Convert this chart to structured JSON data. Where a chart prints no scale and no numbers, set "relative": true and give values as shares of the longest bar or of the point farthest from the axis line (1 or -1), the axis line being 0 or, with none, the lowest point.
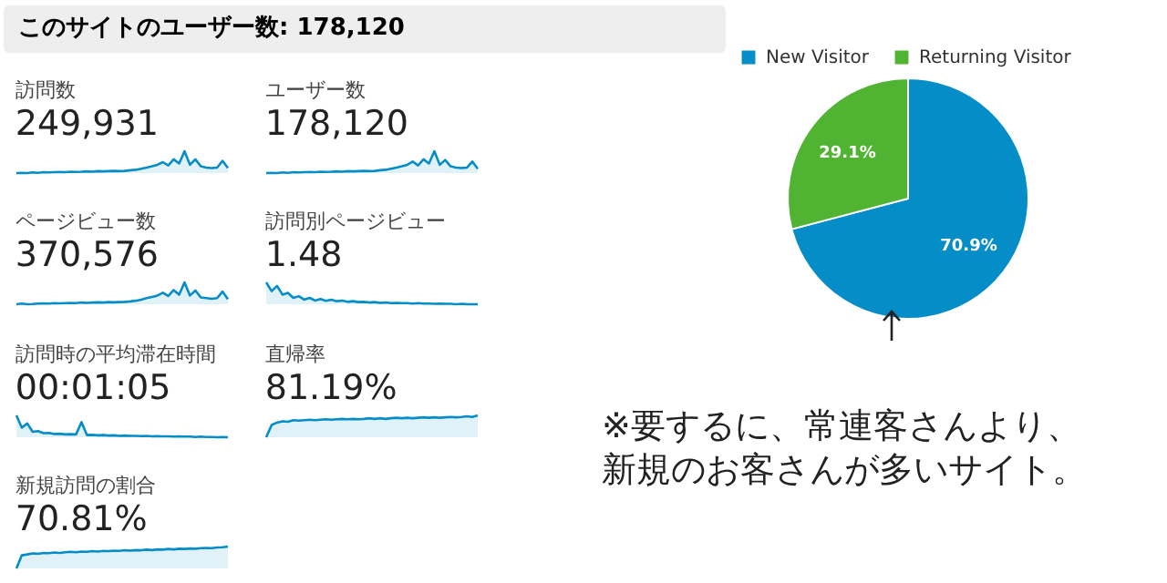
{
  "chart_data": [
    {
      "type": "other",
      "title": "このサイトのユーザー数: 178,120"
    },
    {
      "type": "area",
      "title": "訪問数",
      "subtitle": "249,931",
      "relative": true,
      "categories": [
        null,
        null,
        null,
        null,
        null,
        null,
        null,
        null,
        null,
        null,
        null,
        null,
        null,
        null,
        null,
        null,
        null,
        null,
        null,
        null,
        null,
        null,
        null,
        null,
        null,
        null,
        null,
        null,
        null,
        null,
        null,
        null,
        null,
        null,
        null,
        null,
        null,
        null,
        null,
        null
      ],
      "series": [
        {
          "color": "#058dc7",
          "values": [
            0,
            0.01,
            0,
            0.03,
            0.01,
            0.04,
            0.03,
            0.04,
            0.05,
            0.04,
            0.06,
            0.05,
            0.06,
            0.08,
            0.06,
            0.09,
            0.08,
            0.09,
            0.1,
            0.09,
            0.1,
            0.13,
            0.15,
            0.2,
            0.25,
            0.31,
            0.38,
            0.5,
            0.35,
            0.63,
            0.44,
            1,
            0.38,
            0.63,
            0.31,
            0.25,
            0.23,
            0.25,
            0.56,
            0.23
          ]
        }
      ]
    },
    {
      "type": "area",
      "title": "ユーザー数",
      "subtitle": "178,120",
      "relative": true,
      "categories": [
        null,
        null,
        null,
        null,
        null,
        null,
        null,
        null,
        null,
        null,
        null,
        null,
        null,
        null,
        null,
        null,
        null,
        null,
        null,
        null,
        null,
        null,
        null,
        null,
        null,
        null,
        null,
        null,
        null,
        null,
        null,
        null,
        null,
        null,
        null,
        null,
        null,
        null,
        null,
        null
      ],
      "series": [
        {
          "color": "#058dc7",
          "values": [
            0,
            0.01,
            0,
            0.03,
            0.01,
            0.04,
            0.03,
            0.04,
            0.05,
            0.04,
            0.06,
            0.05,
            0.06,
            0.08,
            0.06,
            0.09,
            0.08,
            0.09,
            0.1,
            0.09,
            0.1,
            0.13,
            0.15,
            0.2,
            0.25,
            0.31,
            0.38,
            0.53,
            0.35,
            0.63,
            0.44,
            1,
            0.38,
            0.6,
            0.31,
            0.25,
            0.23,
            0.25,
            0.53,
            0.2
          ]
        }
      ]
    },
    {
      "type": "area",
      "title": "ページビュー数",
      "subtitle": "370,576",
      "relative": true,
      "categories": [
        null,
        null,
        null,
        null,
        null,
        null,
        null,
        null,
        null,
        null,
        null,
        null,
        null,
        null,
        null,
        null,
        null,
        null,
        null,
        null,
        null,
        null,
        null,
        null,
        null,
        null,
        null,
        null,
        null,
        null,
        null,
        null,
        null,
        null,
        null,
        null,
        null,
        null,
        null,
        null
      ],
      "series": [
        {
          "color": "#058dc7",
          "values": [
            0,
            0.03,
            0,
            0.01,
            0.03,
            0.04,
            0.03,
            0.05,
            0.04,
            0.05,
            0.06,
            0.05,
            0.08,
            0.06,
            0.08,
            0.09,
            0.08,
            0.1,
            0.09,
            0.1,
            0.11,
            0.13,
            0.16,
            0.21,
            0.28,
            0.33,
            0.4,
            0.53,
            0.38,
            0.65,
            0.44,
            1,
            0.4,
            0.63,
            0.31,
            0.28,
            0.25,
            0.28,
            0.58,
            0.23
          ]
        }
      ]
    },
    {
      "type": "area",
      "title": "訪問別ページビュー",
      "subtitle": "1.48",
      "relative": true,
      "categories": [
        null,
        null,
        null,
        null,
        null,
        null,
        null,
        null,
        null,
        null,
        null,
        null,
        null,
        null,
        null,
        null,
        null,
        null,
        null,
        null,
        null,
        null,
        null,
        null,
        null,
        null,
        null,
        null,
        null,
        null,
        null,
        null,
        null,
        null,
        null,
        null,
        null,
        null,
        null,
        null
      ],
      "series": [
        {
          "color": "#058dc7",
          "values": [
            1,
            0.6,
            0.84,
            0.44,
            0.52,
            0.29,
            0.37,
            0.21,
            0.29,
            0.17,
            0.24,
            0.16,
            0.21,
            0.14,
            0.17,
            0.11,
            0.14,
            0.1,
            0.11,
            0.08,
            0.1,
            0.06,
            0.08,
            0.05,
            0.06,
            0.05,
            0.05,
            0.03,
            0.05,
            0.03,
            0.03,
            0.02,
            0.03,
            0.02,
            0.02,
            0,
            0.02,
            0,
            0,
            0
          ]
        }
      ]
    },
    {
      "type": "area",
      "title": "訪問時の平均滞在時間",
      "subtitle": "00:01:05",
      "relative": true,
      "categories": [
        null,
        null,
        null,
        null,
        null,
        null,
        null,
        null,
        null,
        null,
        null,
        null,
        null,
        null,
        null,
        null,
        null,
        null,
        null,
        null,
        null,
        null,
        null,
        null,
        null,
        null,
        null,
        null,
        null,
        null,
        null,
        null,
        null,
        null,
        null,
        null,
        null,
        null,
        null,
        null
      ],
      "series": [
        {
          "color": "#058dc7",
          "values": [
            1,
            0.44,
            0.63,
            0.25,
            0.28,
            0.19,
            0.2,
            0.15,
            0.16,
            0.13,
            0.14,
            0.13,
            0.69,
            0.1,
            0.11,
            0.09,
            0.1,
            0.08,
            0.09,
            0.06,
            0.08,
            0.06,
            0.06,
            0.05,
            0.06,
            0.04,
            0.05,
            0.04,
            0.04,
            0.03,
            0.04,
            0.03,
            0.03,
            0.01,
            0.03,
            0.01,
            0.01,
            0,
            0.01,
            0
          ]
        }
      ]
    },
    {
      "type": "area",
      "title": "直帰率",
      "subtitle": "81.19%",
      "relative": true,
      "categories": [
        null,
        null,
        null,
        null,
        null,
        null,
        null,
        null,
        null,
        null,
        null,
        null,
        null,
        null,
        null,
        null,
        null,
        null,
        null,
        null,
        null,
        null,
        null,
        null,
        null,
        null,
        null,
        null,
        null,
        null,
        null,
        null,
        null,
        null,
        null,
        null,
        null,
        null,
        null,
        null
      ],
      "series": [
        {
          "color": "#058dc7",
          "values": [
            0,
            0.56,
            0.67,
            0.73,
            0.71,
            0.78,
            0.76,
            0.78,
            0.8,
            0.78,
            0.8,
            0.82,
            0.8,
            0.82,
            0.84,
            0.82,
            0.84,
            0.82,
            0.84,
            0.87,
            0.84,
            0.87,
            0.84,
            0.87,
            0.89,
            0.87,
            0.89,
            0.87,
            0.89,
            0.91,
            0.89,
            0.91,
            0.89,
            0.91,
            0.93,
            0.91,
            0.93,
            0.96,
            0.93,
            1
          ]
        }
      ]
    },
    {
      "type": "area",
      "title": "新規訪問の割合",
      "subtitle": "70.81%",
      "relative": true,
      "categories": [
        null,
        null,
        null,
        null,
        null,
        null,
        null,
        null,
        null,
        null,
        null,
        null,
        null,
        null,
        null,
        null,
        null,
        null,
        null,
        null,
        null,
        null,
        null,
        null,
        null,
        null,
        null,
        null,
        null,
        null,
        null,
        null,
        null,
        null,
        null,
        null,
        null,
        null,
        null,
        null
      ],
      "series": [
        {
          "color": "#058dc7",
          "values": [
            0,
            0.6,
            0.64,
            0.69,
            0.67,
            0.71,
            0.7,
            0.73,
            0.71,
            0.74,
            0.76,
            0.74,
            0.77,
            0.76,
            0.79,
            0.77,
            0.8,
            0.79,
            0.81,
            0.8,
            0.83,
            0.81,
            0.84,
            0.83,
            0.86,
            0.84,
            0.87,
            0.86,
            0.89,
            0.87,
            0.9,
            0.89,
            0.91,
            0.9,
            0.93,
            0.94,
            0.93,
            0.96,
            0.97,
            1
          ]
        }
      ]
    },
    {
      "type": "pie",
      "categories": [
        "New Visitor",
        "Returning Visitor"
      ],
      "values": [
        70.9,
        29.1
      ],
      "colors": [
        "#058dc7",
        "#50b432"
      ],
      "value_labels": [
        "70.9%",
        "29.1%"
      ],
      "legend": "top",
      "annotations": [
        "※要するに、常連客さんより、新規のお客さんが多いサイト。"
      ]
    }
  ]
}
